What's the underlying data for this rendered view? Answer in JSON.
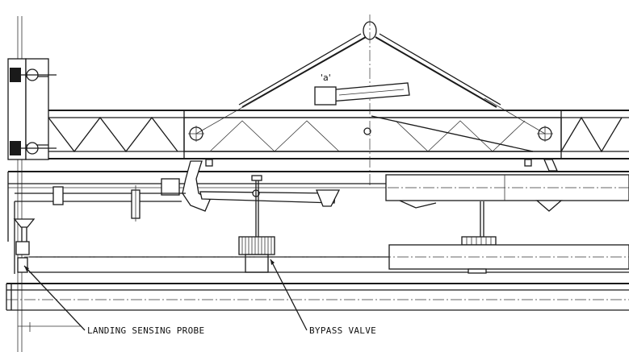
{
  "labels": {
    "detail": "'a'",
    "landing_probe": "LANDING SENSING PROBE",
    "bypass_valve": "BYPASS VALVE"
  },
  "colors": {
    "ink": "#1a1a1a",
    "paper": "#ffffff"
  }
}
